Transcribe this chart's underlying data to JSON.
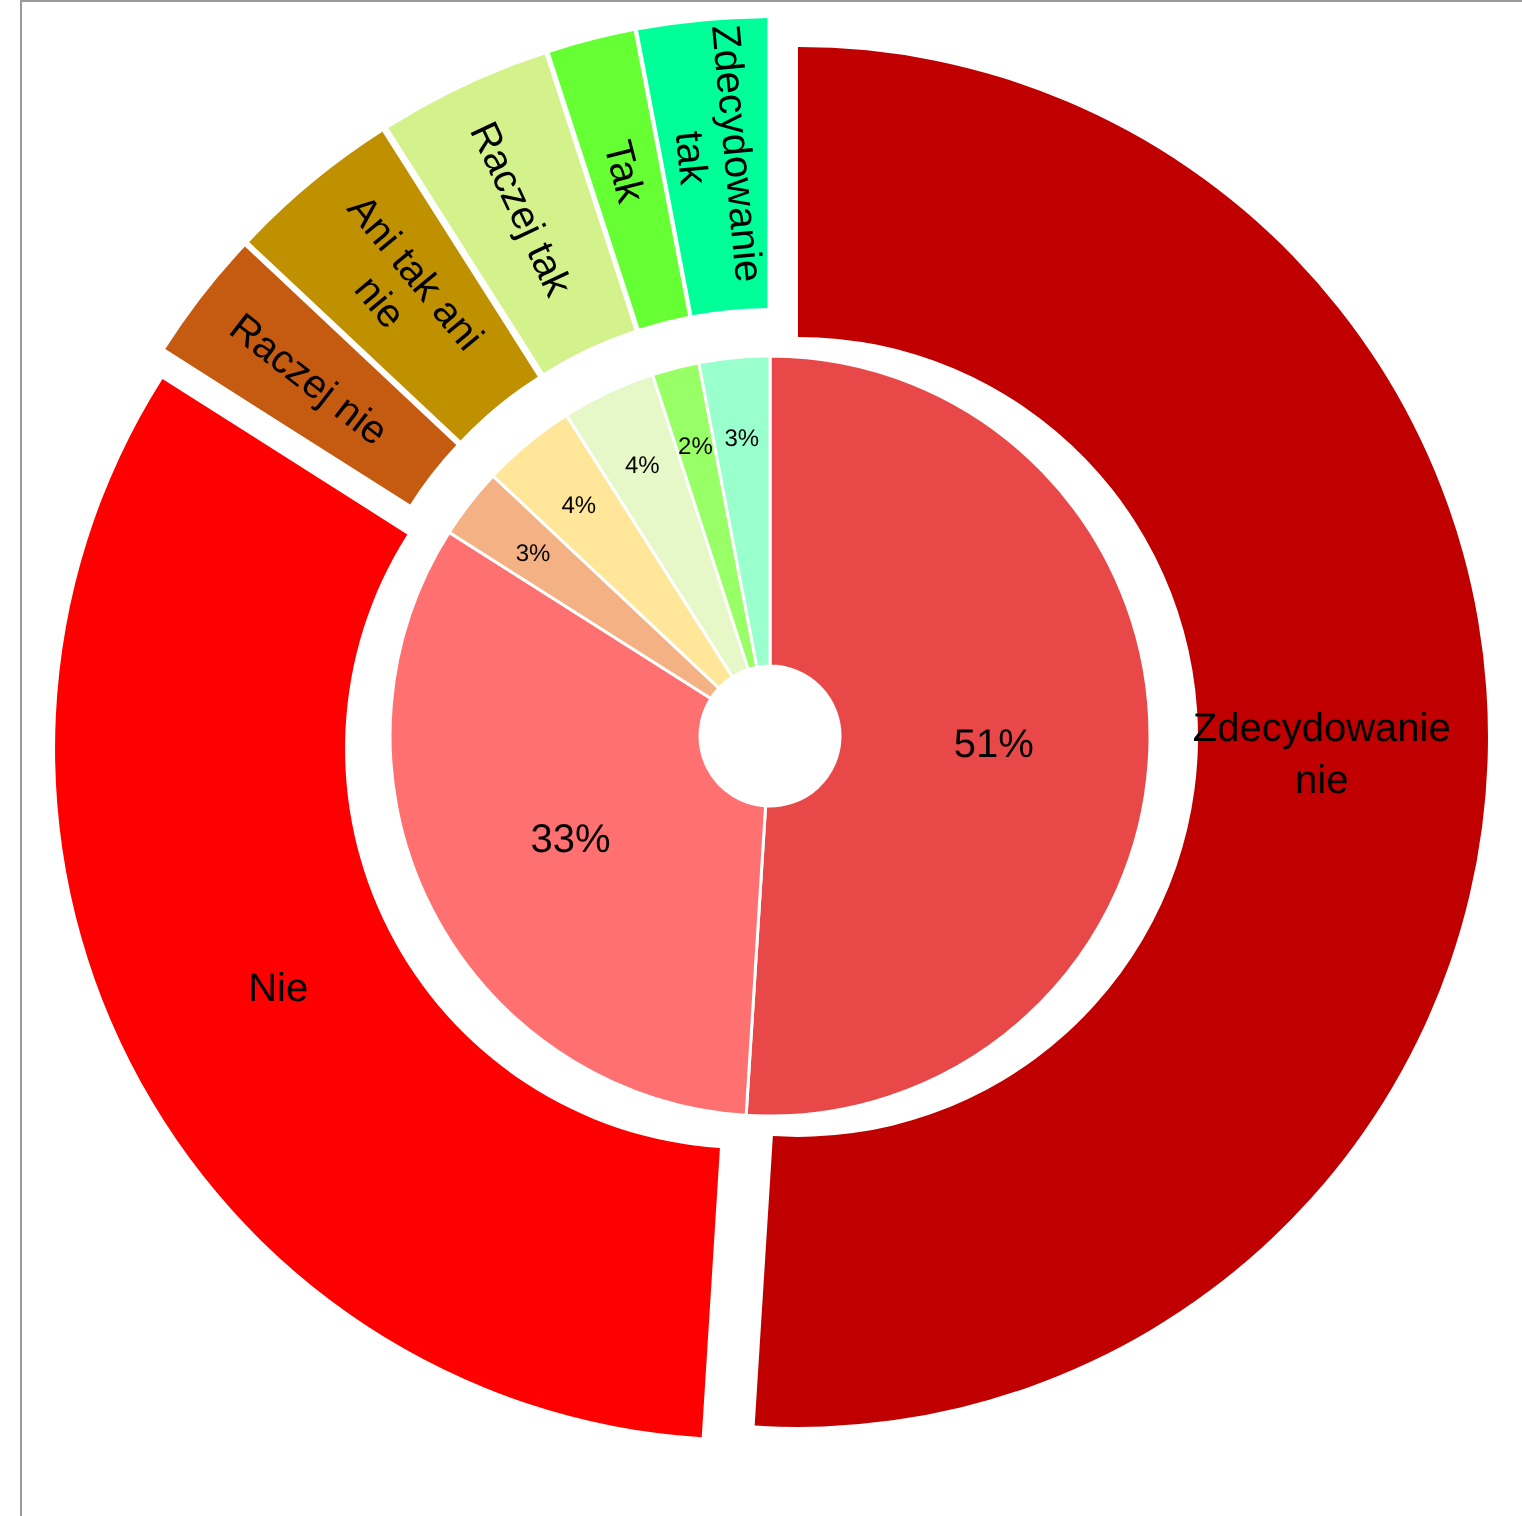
{
  "chart_data": [
    {
      "type": "donut",
      "categories": [
        "Zdecydowanie nie",
        "Nie",
        "Raczej nie",
        "Ani tak ani nie",
        "Raczej tak",
        "Tak",
        "Zdecydowanie tak"
      ],
      "values": [
        51,
        33,
        3,
        4,
        4,
        2,
        3
      ],
      "colors": [
        "#c00000",
        "#ff0000",
        "#c55a11",
        "#bf9000",
        "#d4f28c",
        "#66ff33",
        "#00ff99"
      ]
    },
    {
      "type": "donut",
      "categories": [
        null,
        null,
        null,
        null,
        null,
        null,
        null
      ],
      "values": [
        51,
        33,
        3,
        4,
        4,
        2,
        3
      ],
      "value_labels": [
        "51%",
        "33%",
        "3%",
        "4%",
        "4%",
        "2%",
        "3%"
      ],
      "colors": [
        "#e84848",
        "#ff7070",
        "#f4b183",
        "#ffe699",
        "#e6f8c8",
        "#99ff66",
        "#99ffcc"
      ]
    }
  ]
}
